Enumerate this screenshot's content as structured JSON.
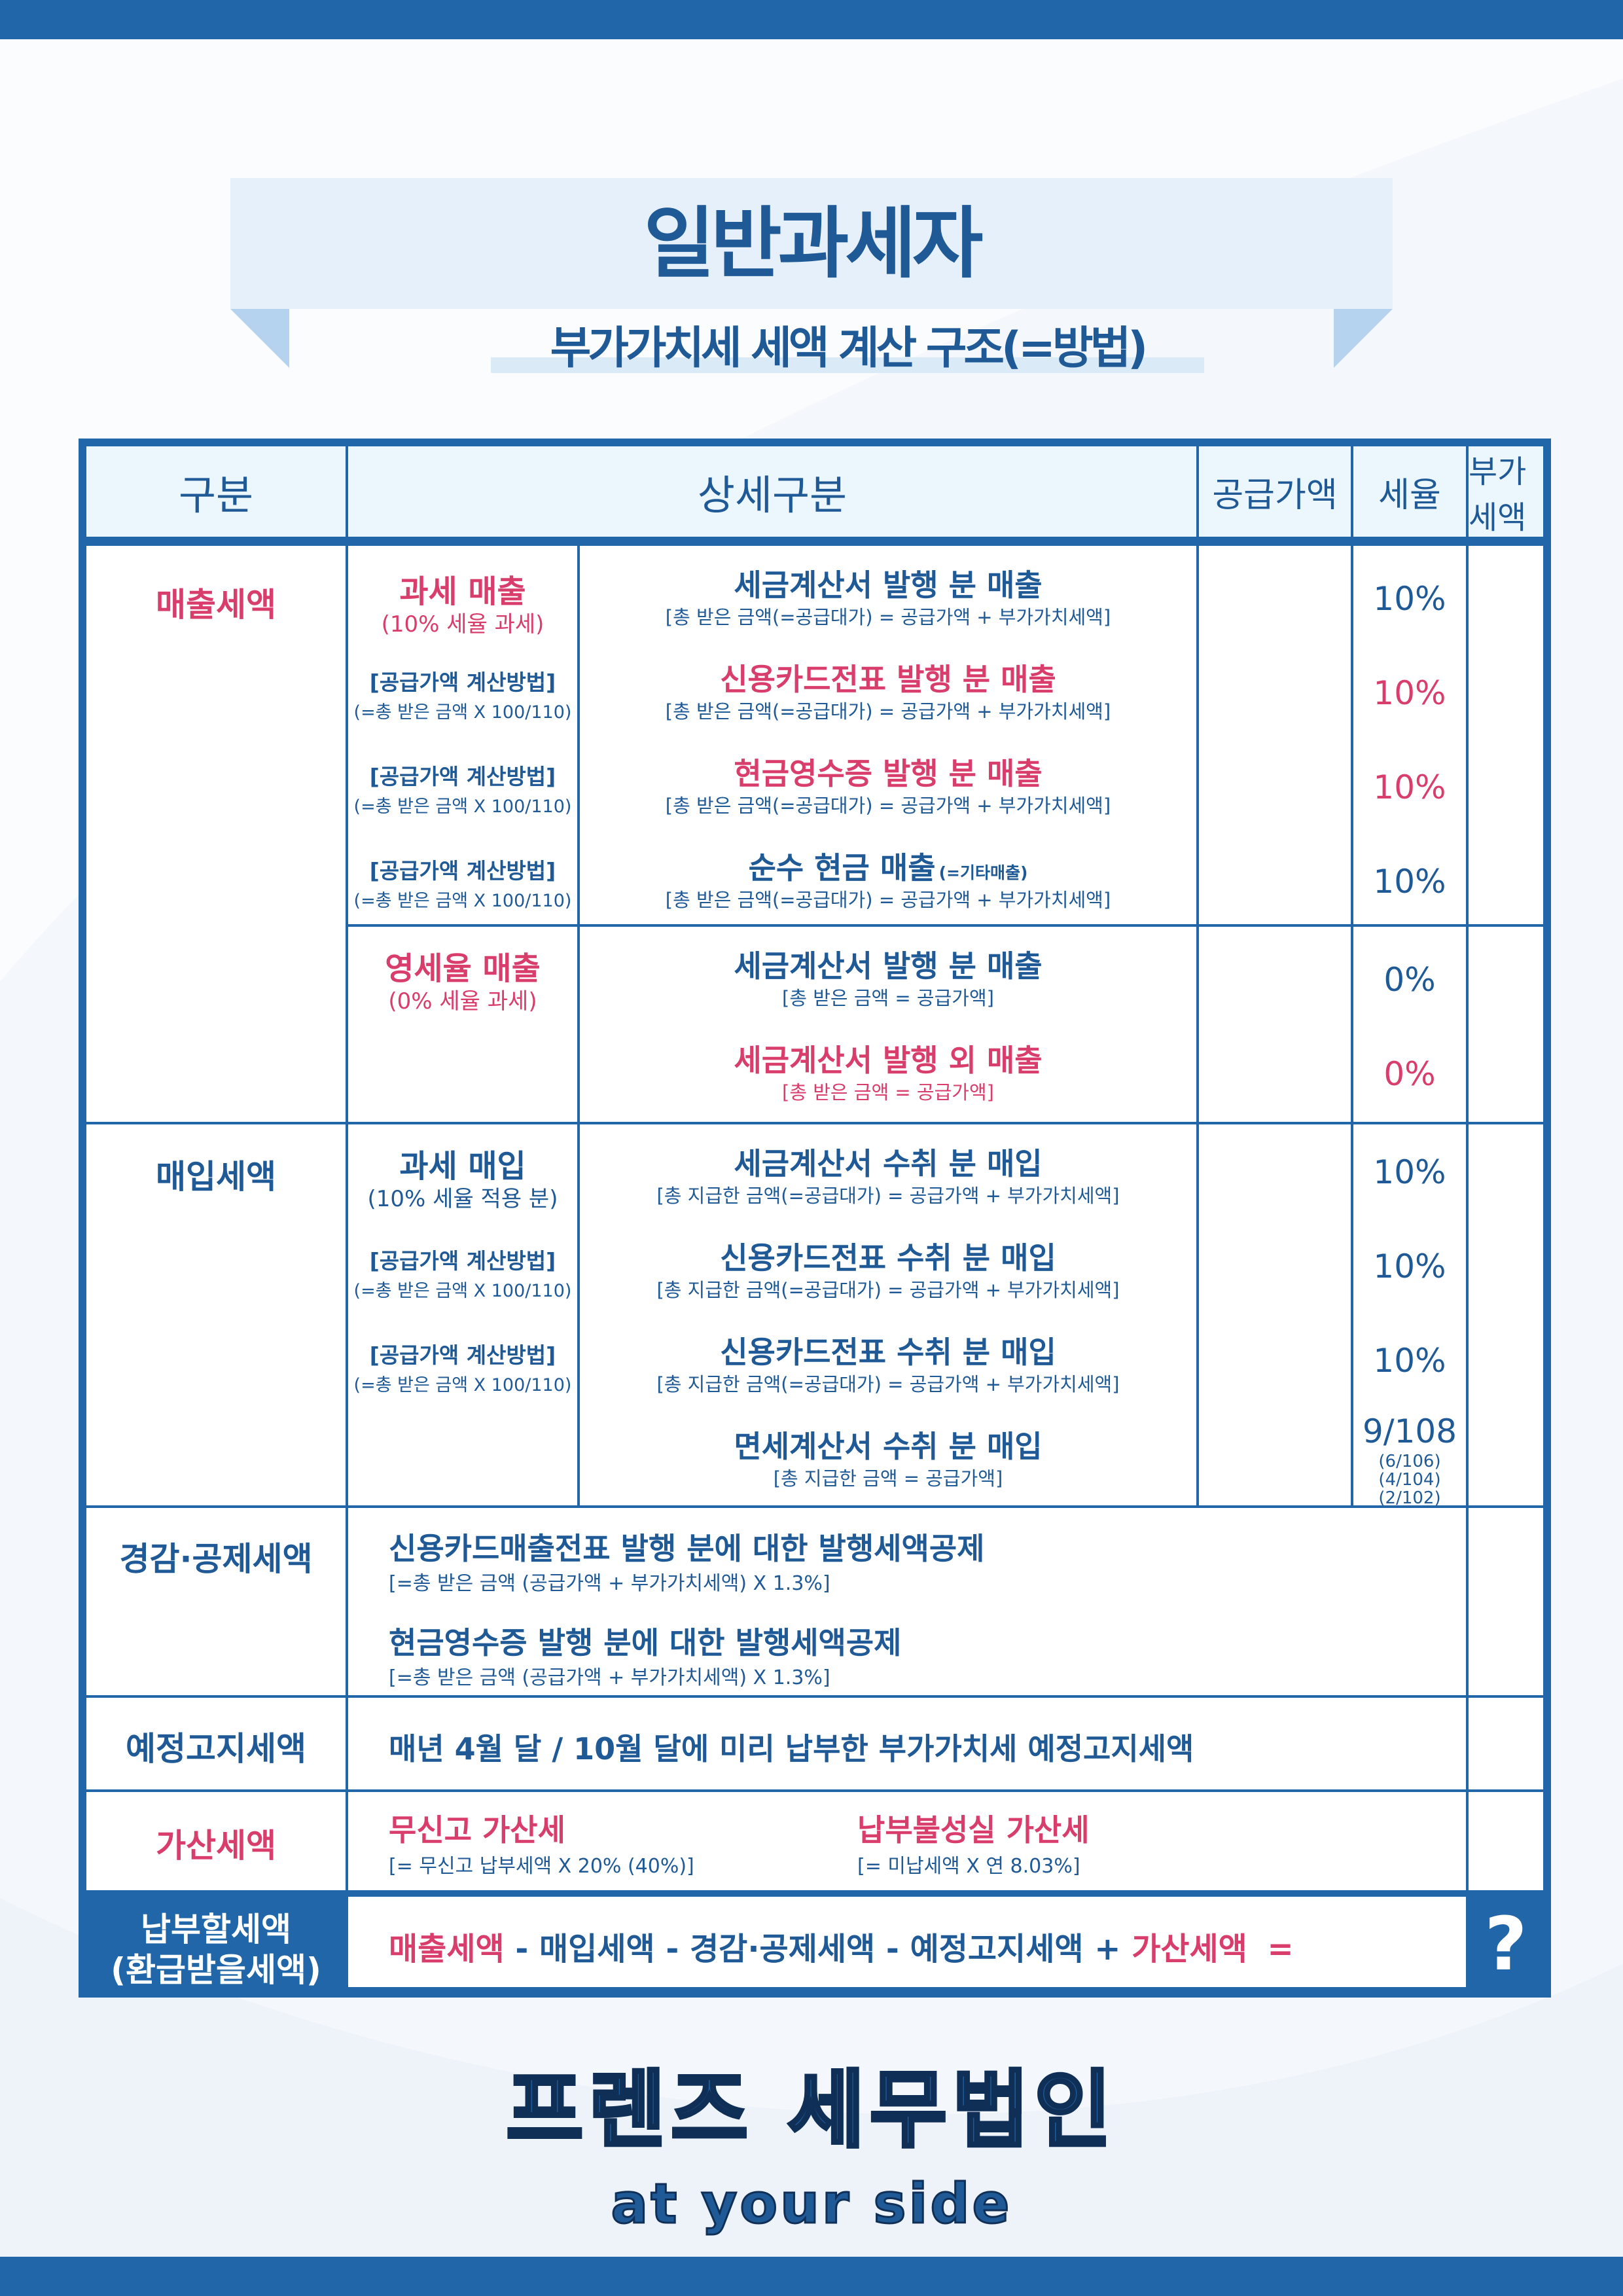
{
  "banner": {
    "title": "일반과세자",
    "subtitle": "부가가치세 세액 계산 구조(=방법)"
  },
  "table": {
    "headers": [
      "구분",
      "상세구분",
      "공급가액",
      "세율",
      "부가세액"
    ],
    "sales": {
      "category": "매출세액",
      "taxable": {
        "title": "과세 매출",
        "note": "(10% 세율 과세)",
        "calc_title": "[공급가액 계산방법]",
        "calc_formula": "(=총 받은 금액 X 100/110)",
        "rows": [
          {
            "title": "세금계산서 발행 분 매출",
            "formula": "[총 받은 금액(=공급대가) = 공급가액 + 부가가치세액]",
            "rate": "10%"
          },
          {
            "title": "신용카드전표 발행 분 매출",
            "formula": "[총 받은 금액(=공급대가) = 공급가액 + 부가가치세액]",
            "rate": "10%"
          },
          {
            "title": "현금영수증 발행 분 매출",
            "formula": "[총 받은 금액(=공급대가) = 공급가액 + 부가가치세액]",
            "rate": "10%"
          },
          {
            "title": "순수 현금 매출",
            "title_note": "(=기타매출)",
            "formula": "[총 받은 금액(=공급대가) = 공급가액 + 부가가치세액]",
            "rate": "10%"
          }
        ]
      },
      "zero": {
        "title": "영세율 매출",
        "note": "(0% 세율 과세)",
        "rows": [
          {
            "title": "세금계산서 발행 분 매출",
            "formula": "[총 받은 금액 = 공급가액]",
            "rate": "0%"
          },
          {
            "title": "세금계산서 발행 외 매출",
            "formula": "[총 받은 금액 = 공급가액]",
            "rate": "0%"
          }
        ]
      }
    },
    "purchase": {
      "category": "매입세액",
      "title": "과세 매입",
      "note": "(10% 세율 적용 분)",
      "calc_title": "[공급가액 계산방법]",
      "calc_formula": "(=총 받은 금액 X 100/110)",
      "rows": [
        {
          "title": "세금계산서 수취 분 매입",
          "formula": "[총 지급한 금액(=공급대가) = 공급가액 + 부가가치세액]",
          "rate": "10%"
        },
        {
          "title": "신용카드전표 수취 분 매입",
          "formula": "[총 지급한 금액(=공급대가) = 공급가액 + 부가가치세액]",
          "rate": "10%"
        },
        {
          "title": "신용카드전표 수취 분 매입",
          "formula": "[총 지급한 금액(=공급대가) = 공급가액 + 부가가치세액]",
          "rate": "10%"
        },
        {
          "title": "면세계산서 수취 분 매입",
          "formula": "[총 지급한 금액 = 공급가액]",
          "rate": "9/108",
          "rate_notes": [
            "(6/106)",
            "(4/104)",
            "(2/102)"
          ]
        }
      ]
    },
    "deduction": {
      "category": "경감·공제세액",
      "items": [
        {
          "title": "신용카드매출전표 발행 분에 대한 발행세액공제",
          "formula": "[=총 받은 금액 (공급가액 + 부가가치세액) X 1.3%]"
        },
        {
          "title": "현금영수증 발행 분에 대한 발행세액공제",
          "formula": "[=총 받은 금액 (공급가액 + 부가가치세액) X 1.3%]"
        }
      ]
    },
    "prenotice": {
      "category": "예정고지세액",
      "text": "매년 4월 달 / 10월 달에 미리 납부한 부가가치세 예정고지세액"
    },
    "penalty": {
      "category": "가산세액",
      "items": [
        {
          "title": "무신고 가산세",
          "formula": "[= 무신고 납부세액 X 20% (40%)]"
        },
        {
          "title": "납부불성실 가산세",
          "formula": "[= 미납세액 X 연 8.03%]"
        }
      ]
    },
    "total": {
      "label_line1": "납부할세액",
      "label_line2": "(환급받을세액)",
      "terms": [
        "매출세액",
        "매입세액",
        "경감·공제세액",
        "예정고지세액",
        "가산세액"
      ],
      "op_minus": "-",
      "op_plus": "+",
      "op_equals": "=",
      "result": "?"
    }
  },
  "footer": {
    "company": "프렌즈 세무법인",
    "tagline": "at your side"
  },
  "colors": {
    "primary": "#2166a8",
    "text_blue": "#1f5a96",
    "accent_red": "#d93d6b",
    "header_bg": "#ecf6fd",
    "banner_bg": "#e6f0fa"
  }
}
